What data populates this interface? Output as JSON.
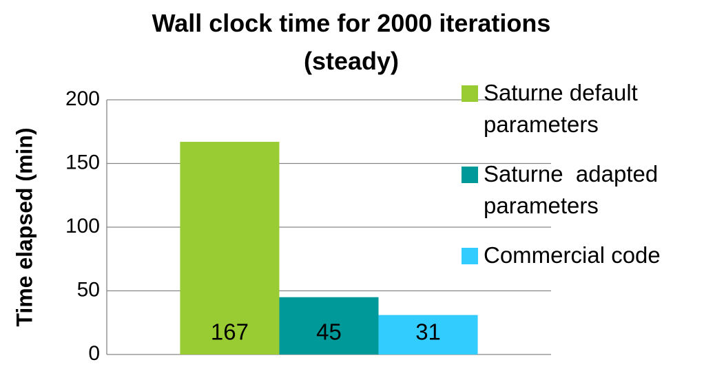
{
  "chart_data": {
    "type": "bar",
    "title": "Wall clock time for 2000 iterations (steady)",
    "y_label": "Time elapsed (min)",
    "categories": [
      null
    ],
    "series": [
      {
        "name": "Saturne default parameters",
        "color": "#99cc33",
        "values": [
          167
        ]
      },
      {
        "name": "Saturne  adapted parameters",
        "color": "#009999",
        "values": [
          45
        ]
      },
      {
        "name": "Commercial code",
        "color": "#33ccff",
        "values": [
          31
        ]
      }
    ],
    "ylim": [
      0,
      200
    ],
    "yticks": [
      0,
      50,
      100,
      150,
      200
    ],
    "grid": true,
    "legend": "right"
  }
}
